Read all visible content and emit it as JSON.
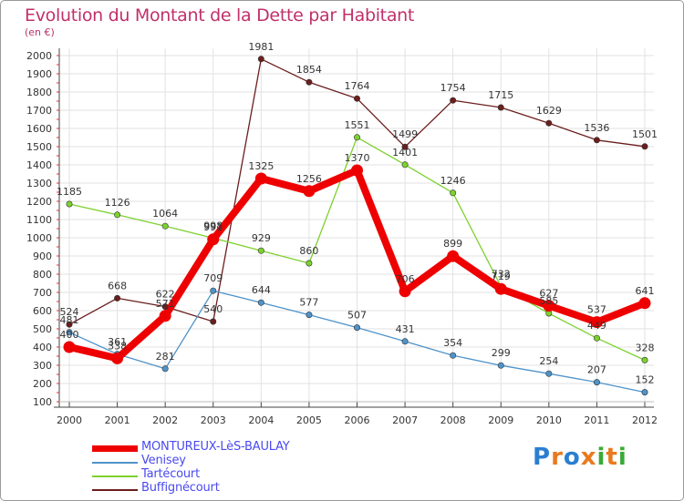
{
  "title": "Evolution du Montant de la Dette par Habitant",
  "subtitle": "(en €)",
  "brand": {
    "letters": [
      "P",
      "r",
      "o",
      "x",
      "i",
      "t",
      "i"
    ],
    "colors": [
      "#2a7fd0",
      "#e87a1e",
      "#2a7fd0",
      "#e87a1e",
      "#3aaa35",
      "#e87a1e",
      "#3aaa35"
    ]
  },
  "chart_data": {
    "type": "line",
    "title": "Evolution du Montant de la Dette par Habitant",
    "ylabel": "(en €)",
    "xlabel": "",
    "ylim": [
      100,
      2000
    ],
    "yticks": [
      100,
      200,
      300,
      400,
      500,
      600,
      700,
      800,
      900,
      1000,
      1100,
      1200,
      1300,
      1400,
      1500,
      1600,
      1700,
      1800,
      1900,
      2000
    ],
    "x": [
      "2000",
      "2001",
      "2002",
      "2003",
      "2004",
      "2005",
      "2006",
      "2007",
      "2008",
      "2009",
      "2010",
      "2011",
      "2012"
    ],
    "grid": true,
    "series": [
      {
        "name": "Buffignécourt",
        "color": "#6b1e1e",
        "values": [
          524,
          668,
          622,
          540,
          1981,
          1854,
          1764,
          1499,
          1754,
          1715,
          1629,
          1536,
          1501
        ],
        "labels": [
          "524",
          "668",
          "622",
          "540",
          "1981",
          "1854",
          "1764",
          "1499",
          "1754",
          "1715",
          "1629",
          "1536",
          "1501"
        ]
      },
      {
        "name": "Venisey",
        "color": "#4f93c9",
        "values": [
          481,
          361,
          281,
          709,
          644,
          577,
          507,
          431,
          354,
          299,
          254,
          207,
          152
        ],
        "labels": [
          "481",
          "361",
          "281",
          "709",
          "644",
          "577",
          "507",
          "431",
          "354",
          "299",
          "254",
          "207",
          "152"
        ]
      },
      {
        "name": "Tartécourt",
        "color": "#7dd12e",
        "values": [
          1185,
          1126,
          1064,
          998,
          929,
          860,
          1551,
          1401,
          1246,
          732,
          585,
          449,
          328
        ],
        "labels": [
          "1185",
          "1126",
          "1064",
          "998",
          "929",
          "860",
          "1551",
          "1401",
          "1246",
          "732",
          "585",
          "449",
          "328"
        ]
      },
      {
        "name": "MONTUREUX-LèS-BAULAY",
        "color": "#ee0000",
        "values": [
          400,
          338,
          571,
          991,
          1325,
          1256,
          1370,
          706,
          899,
          719,
          627,
          537,
          641
        ],
        "labels": [
          "400",
          "338",
          "571",
          "991",
          "1325",
          "1256",
          "1370",
          "706",
          "899",
          "719",
          "627",
          "537",
          "641"
        ]
      }
    ]
  },
  "legend": [
    {
      "name": "MONTUREUX-LèS-BAULAY",
      "color": "#ee0000",
      "thick": true
    },
    {
      "name": "Venisey",
      "color": "#4f93c9",
      "thick": false
    },
    {
      "name": "Tartécourt",
      "color": "#7dd12e",
      "thick": false
    },
    {
      "name": "Buffignécourt",
      "color": "#6b1e1e",
      "thick": false
    }
  ]
}
